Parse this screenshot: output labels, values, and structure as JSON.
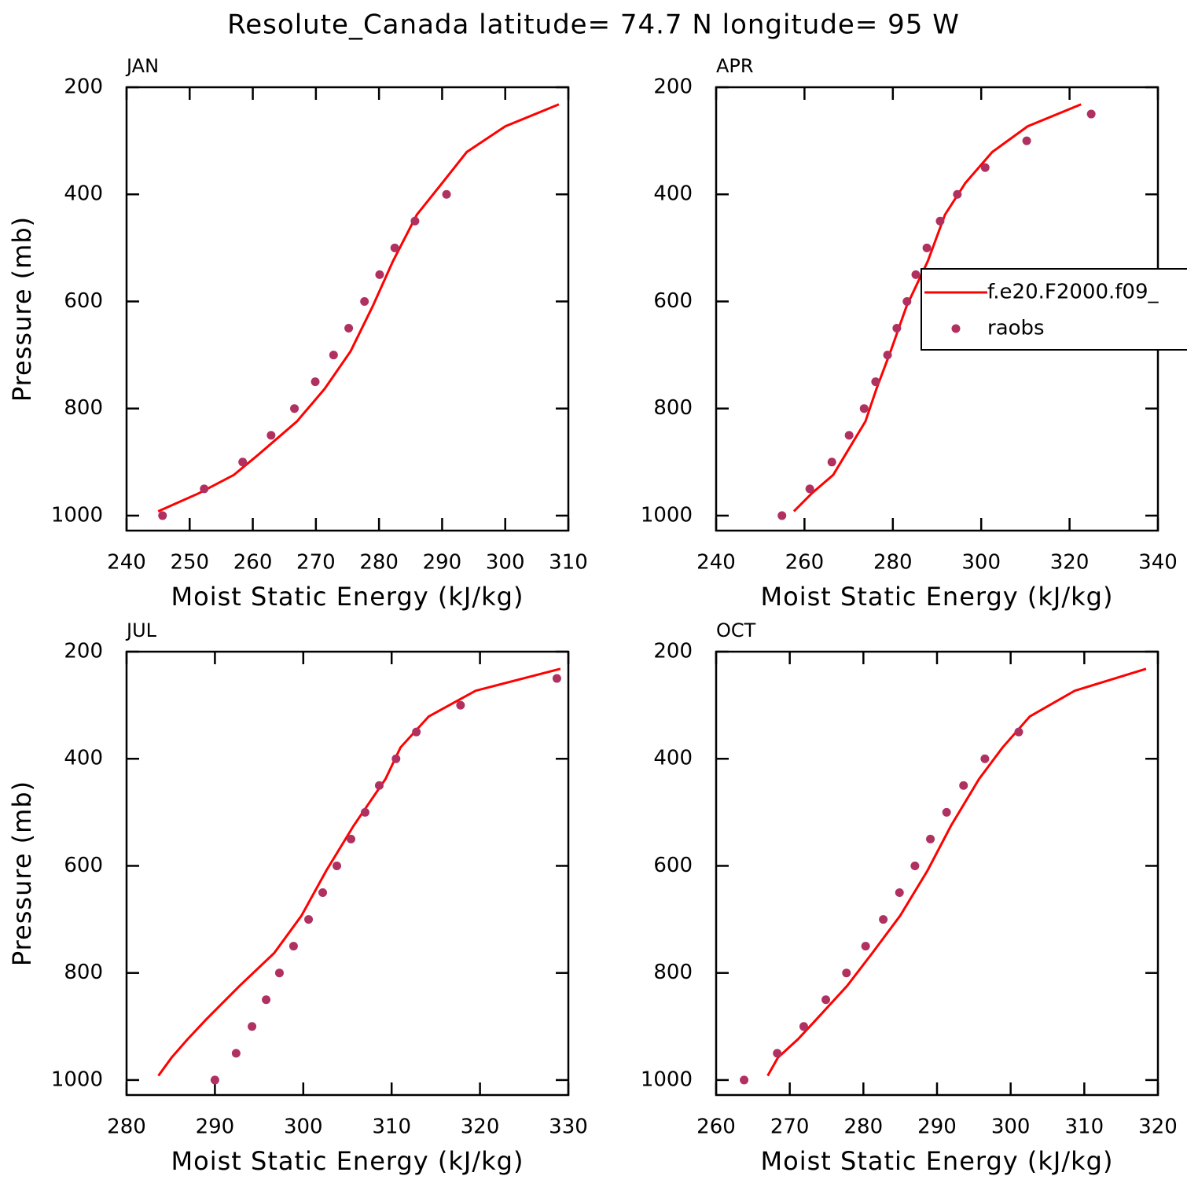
{
  "title": "Resolute_Canada  latitude= 74.7 N longitude= 95 W",
  "chart_data": [
    {
      "type": "line",
      "title": "JAN",
      "xlabel": "Moist Static Energy (kJ/kg)",
      "ylabel": "Pressure (mb)",
      "xlim": [
        240,
        310
      ],
      "xticks": [
        240,
        250,
        260,
        270,
        280,
        290,
        300,
        310
      ],
      "ylim": [
        1028,
        200
      ],
      "yticks": [
        200,
        400,
        600,
        800,
        1000
      ],
      "series": [
        {
          "name": "f.e20.F2000.f09_",
          "mode": "lines",
          "color": "#ff0000",
          "x": [
            245.0,
            251.5,
            257.0,
            260.8,
            267.0,
            271.4,
            275.5,
            279.0,
            282.2,
            286.0,
            290.0,
            293.9,
            300.0,
            308.5
          ],
          "values": [
            992,
            958,
            924,
            887,
            824,
            763,
            693,
            609,
            525,
            438,
            379,
            321,
            273,
            232
          ]
        },
        {
          "name": "raobs",
          "mode": "markers",
          "color": "#b03060",
          "x": [
            245.7,
            252.3,
            258.4,
            262.9,
            266.6,
            269.9,
            272.8,
            275.2,
            277.7,
            280.1,
            282.5,
            285.7,
            290.7
          ],
          "values": [
            1000,
            950,
            900,
            850,
            800,
            750,
            700,
            650,
            600,
            550,
            500,
            450,
            400
          ]
        }
      ]
    },
    {
      "type": "line",
      "title": "APR",
      "xlabel": "Moist Static Energy (kJ/kg)",
      "legend": "center-right",
      "xlim": [
        240,
        340
      ],
      "xticks": [
        240,
        260,
        280,
        300,
        320,
        340
      ],
      "ylim": [
        1028,
        200
      ],
      "yticks": [
        200,
        400,
        600,
        800,
        1000
      ],
      "series": [
        {
          "name": "f.e20.F2000.f09_",
          "mode": "lines",
          "color": "#ff0000",
          "x": [
            257.6,
            261.7,
            266.5,
            269.2,
            273.8,
            276.3,
            279.5,
            283.1,
            287.9,
            291.8,
            296.4,
            302.5,
            310.5,
            322.6
          ],
          "values": [
            992,
            958,
            924,
            887,
            824,
            763,
            693,
            609,
            525,
            438,
            379,
            321,
            273,
            232
          ]
        },
        {
          "name": "raobs",
          "mode": "markers",
          "color": "#b03060",
          "x": [
            254.9,
            261.2,
            266.2,
            270.1,
            273.5,
            276.1,
            278.8,
            280.9,
            283.2,
            285.2,
            287.7,
            290.7,
            294.6,
            300.9,
            310.3,
            324.9
          ],
          "values": [
            1000,
            950,
            900,
            850,
            800,
            750,
            700,
            650,
            600,
            550,
            500,
            450,
            400,
            350,
            300,
            250
          ]
        }
      ]
    },
    {
      "type": "line",
      "title": "JUL",
      "xlabel": "Moist Static Energy (kJ/kg)",
      "ylabel": "Pressure (mb)",
      "xlim": [
        280,
        330
      ],
      "xticks": [
        280,
        290,
        300,
        310,
        320,
        330
      ],
      "ylim": [
        1028,
        200
      ],
      "yticks": [
        200,
        400,
        600,
        800,
        1000
      ],
      "series": [
        {
          "name": "f.e20.F2000.f09_",
          "mode": "lines",
          "color": "#ff0000",
          "x": [
            283.6,
            285.1,
            286.9,
            289.0,
            292.8,
            296.7,
            299.8,
            302.6,
            305.7,
            309.3,
            311.0,
            314.2,
            319.5,
            329.1
          ],
          "values": [
            992,
            958,
            924,
            887,
            824,
            763,
            693,
            609,
            525,
            438,
            379,
            321,
            273,
            232
          ]
        },
        {
          "name": "raobs",
          "mode": "markers",
          "color": "#b03060",
          "x": [
            290.0,
            292.4,
            294.2,
            295.8,
            297.3,
            298.9,
            300.6,
            302.2,
            303.8,
            305.4,
            307.0,
            308.6,
            310.5,
            312.8,
            317.8,
            328.7
          ],
          "values": [
            1000,
            950,
            900,
            850,
            800,
            750,
            700,
            650,
            600,
            550,
            500,
            450,
            400,
            350,
            300,
            250
          ]
        }
      ]
    },
    {
      "type": "line",
      "title": "OCT",
      "xlabel": "Moist Static Energy (kJ/kg)",
      "xlim": [
        260,
        320
      ],
      "xticks": [
        260,
        270,
        280,
        290,
        300,
        310,
        320
      ],
      "ylim": [
        1028,
        200
      ],
      "yticks": [
        200,
        400,
        600,
        800,
        1000
      ],
      "series": [
        {
          "name": "f.e20.F2000.f09_",
          "mode": "lines",
          "color": "#ff0000",
          "x": [
            267.0,
            268.4,
            271.1,
            273.6,
            277.8,
            281.2,
            285.0,
            288.7,
            291.9,
            295.7,
            298.9,
            302.6,
            308.7,
            318.4
          ],
          "values": [
            992,
            958,
            924,
            887,
            824,
            763,
            693,
            609,
            525,
            438,
            379,
            321,
            273,
            232
          ]
        },
        {
          "name": "raobs",
          "mode": "markers",
          "color": "#b03060",
          "x": [
            263.8,
            268.3,
            271.9,
            274.9,
            277.7,
            280.3,
            282.7,
            284.9,
            287.0,
            289.1,
            291.3,
            293.6,
            296.5,
            301.1
          ],
          "values": [
            1000,
            950,
            900,
            850,
            800,
            750,
            700,
            650,
            600,
            550,
            500,
            450,
            400,
            350
          ]
        }
      ]
    }
  ]
}
